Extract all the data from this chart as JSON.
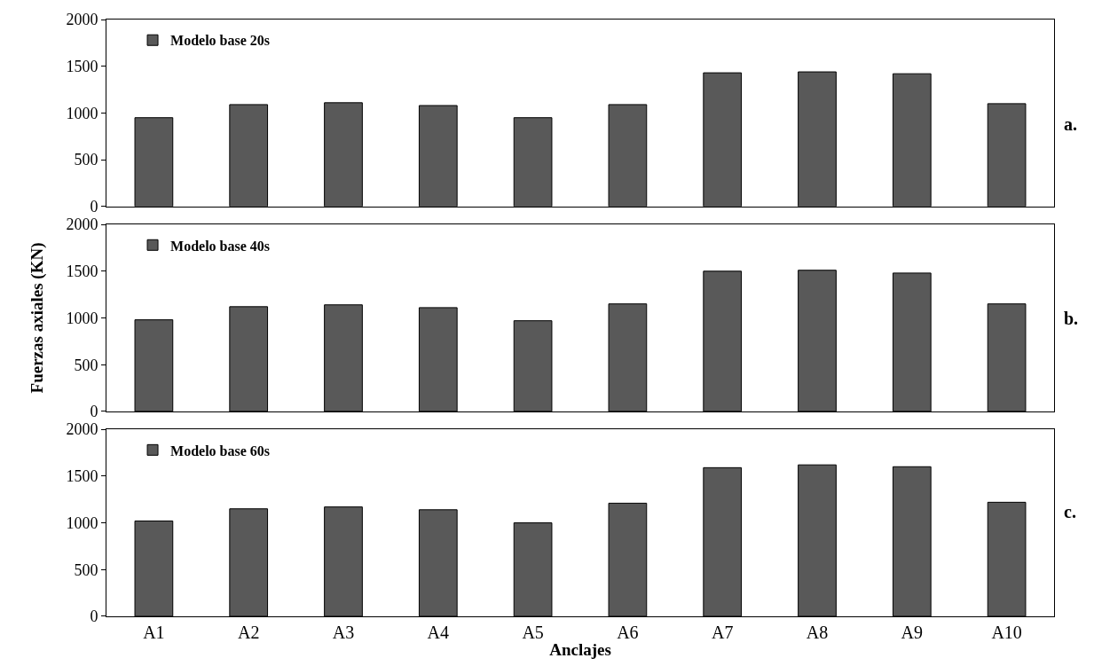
{
  "chart_data": [
    {
      "type": "bar",
      "categories": [
        null,
        null,
        null,
        null,
        null,
        null,
        null,
        null,
        null,
        null
      ],
      "series": [
        {
          "name": "Modelo base 20s",
          "color": "#595959",
          "values": [
            950,
            1090,
            1110,
            1080,
            950,
            1090,
            1430,
            1440,
            1420,
            1100
          ]
        }
      ],
      "ylim": [
        0,
        2000
      ],
      "yticks": [
        0,
        500,
        1000,
        1500,
        2000
      ],
      "legend": "top left",
      "tick_labels": "y",
      "annotations": [
        "a."
      ]
    },
    {
      "type": "bar",
      "categories": [
        null,
        null,
        null,
        null,
        null,
        null,
        null,
        null,
        null,
        null
      ],
      "series": [
        {
          "name": "Modelo base 40s",
          "color": "#595959",
          "values": [
            980,
            1120,
            1140,
            1110,
            970,
            1150,
            1500,
            1510,
            1480,
            1150
          ]
        }
      ],
      "ylim": [
        0,
        2000
      ],
      "yticks": [
        0,
        500,
        1000,
        1500,
        2000
      ],
      "ylabel": "Fuerzas axiales (KN)",
      "legend": "top left",
      "tick_labels": "y",
      "annotations": [
        "b."
      ]
    },
    {
      "type": "bar",
      "categories": [
        "A1",
        "A2",
        "A3",
        "A4",
        "A5",
        "A6",
        "A7",
        "A8",
        "A9",
        "A10"
      ],
      "series": [
        {
          "name": "Modelo base 60s",
          "color": "#595959",
          "values": [
            1020,
            1150,
            1170,
            1140,
            1000,
            1210,
            1590,
            1620,
            1600,
            1220
          ]
        }
      ],
      "ylim": [
        0,
        2000
      ],
      "yticks": [
        0,
        500,
        1000,
        1500,
        2000
      ],
      "xlabel": "Anclajes",
      "legend": "top left",
      "annotations": [
        "c."
      ]
    }
  ]
}
